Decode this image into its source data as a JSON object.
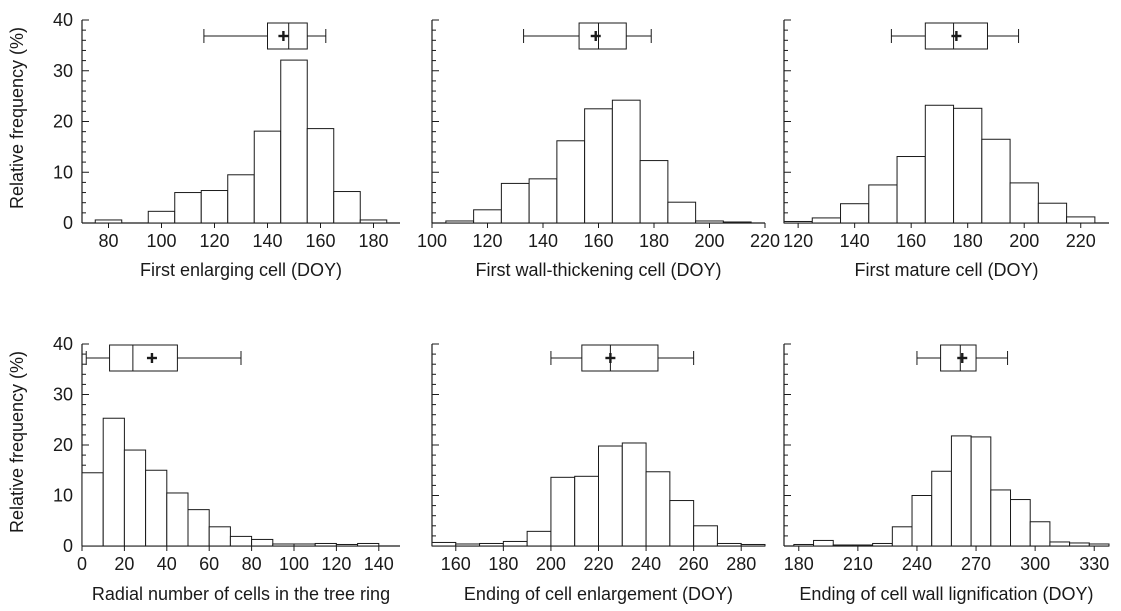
{
  "figure": {
    "ylabel": "Relative frequency (%)"
  },
  "chart_data": [
    {
      "type": "bar",
      "xlabel": "First enlarging cell (DOY)",
      "ylabel": "Relative frequency (%)",
      "xlim": [
        70,
        190
      ],
      "ylim": [
        0,
        40
      ],
      "xticks": [
        80,
        100,
        120,
        140,
        160,
        180
      ],
      "yticks": [
        0,
        10,
        20,
        30,
        40
      ],
      "bin_width": 10,
      "bin_starts": [
        75,
        85,
        95,
        105,
        115,
        125,
        135,
        145,
        155,
        165,
        175,
        185
      ],
      "values": [
        0.6,
        0,
        2.3,
        6.0,
        6.4,
        9.5,
        18.1,
        32.1,
        18.6,
        6.2,
        0.6,
        0
      ],
      "boxplot": {
        "whisker_low": 116,
        "q1": 140,
        "median": 148,
        "mean": 146,
        "q3": 155,
        "whisker_high": 162
      }
    },
    {
      "type": "bar",
      "xlabel": "First wall-thickening cell (DOY)",
      "ylabel": "Relative frequency (%)",
      "xlim": [
        100,
        220
      ],
      "ylim": [
        0,
        40
      ],
      "xticks": [
        100,
        120,
        140,
        160,
        180,
        200,
        220
      ],
      "yticks": [
        0,
        10,
        20,
        30,
        40
      ],
      "bin_width": 10,
      "bin_starts": [
        105,
        115,
        125,
        135,
        145,
        155,
        165,
        175,
        185,
        195,
        205
      ],
      "values": [
        0.4,
        2.6,
        7.8,
        8.7,
        16.2,
        22.5,
        24.2,
        12.3,
        4.1,
        0.4,
        0.2
      ],
      "boxplot": {
        "whisker_low": 133,
        "q1": 153,
        "median": 160,
        "mean": 159,
        "q3": 170,
        "whisker_high": 179
      }
    },
    {
      "type": "bar",
      "xlabel": "First mature cell (DOY)",
      "ylabel": "Relative frequency (%)",
      "xlim": [
        115,
        230
      ],
      "ylim": [
        0,
        40
      ],
      "xticks": [
        120,
        140,
        160,
        180,
        200,
        220
      ],
      "yticks": [
        0,
        10,
        20,
        30,
        40
      ],
      "bin_width": 10,
      "bin_starts": [
        115,
        125,
        135,
        145,
        155,
        165,
        175,
        185,
        195,
        205,
        215
      ],
      "values": [
        0.3,
        1.0,
        3.8,
        7.5,
        13.1,
        23.2,
        22.6,
        16.5,
        7.9,
        3.9,
        1.2
      ],
      "boxplot": {
        "whisker_low": 153,
        "q1": 165,
        "median": 175,
        "mean": 176,
        "q3": 187,
        "whisker_high": 198
      }
    },
    {
      "type": "bar",
      "xlabel": "Radial number of cells in the tree ring",
      "ylabel": "Relative frequency (%)",
      "xlim": [
        0,
        150
      ],
      "ylim": [
        0,
        40
      ],
      "xticks": [
        0,
        20,
        40,
        60,
        80,
        100,
        120,
        140
      ],
      "yticks": [
        0,
        10,
        20,
        30,
        40
      ],
      "bin_width": 10,
      "bin_starts": [
        0,
        10,
        20,
        30,
        40,
        50,
        60,
        70,
        80,
        90,
        100,
        110,
        120,
        130
      ],
      "values": [
        14.5,
        25.3,
        19.0,
        15.0,
        10.5,
        7.2,
        3.8,
        1.9,
        1.3,
        0.4,
        0.4,
        0.5,
        0.3,
        0.5
      ],
      "boxplot": {
        "whisker_low": 2,
        "q1": 13,
        "median": 24,
        "mean": 33,
        "q3": 45,
        "whisker_high": 75
      }
    },
    {
      "type": "bar",
      "xlabel": "Ending of cell enlargement (DOY)",
      "ylabel": "Relative frequency (%)",
      "xlim": [
        150,
        290
      ],
      "ylim": [
        0,
        40
      ],
      "xticks": [
        160,
        180,
        200,
        220,
        240,
        260,
        280
      ],
      "yticks": [
        0,
        10,
        20,
        30,
        40
      ],
      "bin_width": 10,
      "bin_starts": [
        150,
        160,
        170,
        180,
        190,
        200,
        210,
        220,
        230,
        240,
        250,
        260,
        270,
        280
      ],
      "values": [
        0.7,
        0.4,
        0.5,
        0.9,
        2.9,
        13.6,
        13.8,
        19.8,
        20.4,
        14.7,
        9.0,
        4.0,
        0.5,
        0.3
      ],
      "boxplot": {
        "whisker_low": 200,
        "q1": 213,
        "median": 225,
        "mean": 225,
        "q3": 245,
        "whisker_high": 260
      }
    },
    {
      "type": "bar",
      "xlabel": "Ending of cell wall lignification (DOY)",
      "ylabel": "Relative frequency (%)",
      "xlim": [
        172.5,
        337.5
      ],
      "ylim": [
        0,
        40
      ],
      "xticks": [
        180,
        210,
        240,
        270,
        300,
        330
      ],
      "yticks": [
        0,
        10,
        20,
        30,
        40
      ],
      "bin_width": 10,
      "bin_starts": [
        177.5,
        187.5,
        197.5,
        207.5,
        217.5,
        227.5,
        237.5,
        247.5,
        257.5,
        267.5,
        277.5,
        287.5,
        297.5,
        307.5,
        317.5,
        327.5
      ],
      "values": [
        0.3,
        1.1,
        0.2,
        0.2,
        0.5,
        3.8,
        10.0,
        14.8,
        21.8,
        21.6,
        11.1,
        9.2,
        4.8,
        0.8,
        0.6,
        0.4
      ],
      "boxplot": {
        "whisker_low": 240,
        "q1": 252,
        "median": 262,
        "mean": 263,
        "q3": 270,
        "whisker_high": 286
      }
    }
  ]
}
